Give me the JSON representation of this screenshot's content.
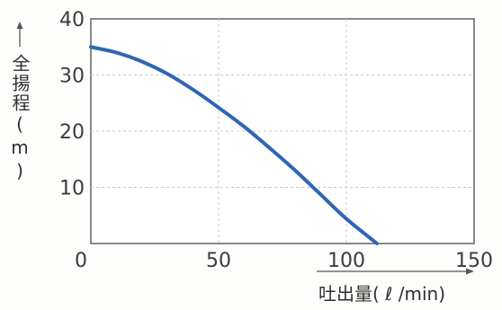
{
  "chart_data": {
    "type": "line",
    "title": "",
    "xlabel": "吐出量( ℓ /min)",
    "ylabel": "全揚程(m)",
    "xlim": [
      0,
      150
    ],
    "ylim": [
      0,
      40
    ],
    "x_ticks": [
      {
        "value": 0,
        "label": "0"
      },
      {
        "value": 50,
        "label": "50"
      },
      {
        "value": 100,
        "label": "100"
      },
      {
        "value": 150,
        "label": "150"
      }
    ],
    "y_ticks": [
      {
        "value": 10,
        "label": "10"
      },
      {
        "value": 20,
        "label": "20"
      },
      {
        "value": 30,
        "label": "30"
      },
      {
        "value": 40,
        "label": "40"
      }
    ],
    "grid": true,
    "series": [
      {
        "color": "#2f66b5",
        "x": [
          0,
          10,
          20,
          30,
          40,
          50,
          60,
          70,
          80,
          90,
          100,
          112
        ],
        "y": [
          35,
          34,
          32.4,
          30.2,
          27.4,
          24.2,
          20.8,
          17,
          13,
          8.7,
          4.4,
          0
        ]
      }
    ]
  }
}
